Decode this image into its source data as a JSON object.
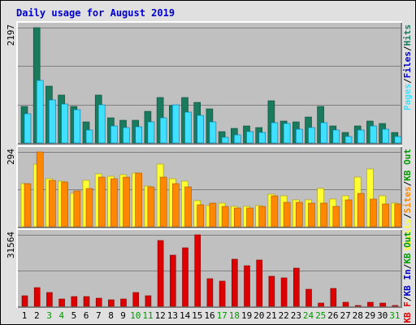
{
  "colors": {
    "pages_dark": "#1a7a5e",
    "pages_light": "#2ab98a",
    "files_dark": "#0aa0c8",
    "files_light": "#40e0ff",
    "visits": "#ffff33",
    "sites": "#ff8800",
    "kb": "#dd0000",
    "weekday": "#000000",
    "weekend": "#009900",
    "panel_bg": "#c0c0c0",
    "grid": "#808080"
  },
  "chart_data": {
    "title": "Daily usage for August 2019",
    "type": "bar",
    "days": [
      "1",
      "2",
      "3",
      "4",
      "5",
      "6",
      "7",
      "8",
      "9",
      "10",
      "11",
      "12",
      "13",
      "14",
      "15",
      "16",
      "17",
      "18",
      "19",
      "20",
      "21",
      "22",
      "23",
      "24",
      "25",
      "26",
      "27",
      "28",
      "29",
      "30",
      "31"
    ],
    "weekend_days": [
      "3",
      "4",
      "10",
      "11",
      "17",
      "18",
      "24",
      "25",
      "31"
    ],
    "panels": [
      {
        "ymax_label": "2197",
        "ymax": 2197,
        "legend": [
          {
            "text": "Pages",
            "color": "#40e0ff"
          },
          {
            "text": "Files",
            "color": "#0000cc"
          },
          {
            "text": "Hits",
            "color": "#1a7a5e"
          }
        ],
        "series": [
          {
            "name": "Hits",
            "values": [
              690,
              2197,
              1080,
              910,
              690,
              410,
              910,
              480,
              430,
              430,
              600,
              860,
              710,
              860,
              780,
              650,
              210,
              280,
              320,
              290,
              800,
              420,
              410,
              500,
              700,
              330,
              200,
              330,
              420,
              370,
              200
            ]
          },
          {
            "name": "Files",
            "values": [
              560,
              1190,
              820,
              750,
              640,
              250,
              720,
              330,
              290,
              310,
              400,
              480,
              730,
              590,
              520,
              410,
              110,
              160,
              210,
              200,
              380,
              370,
              270,
              300,
              380,
              250,
              130,
              250,
              320,
              260,
              130
            ]
          }
        ]
      },
      {
        "ymax_label": "294",
        "ymax": 294,
        "legend": [
          {
            "text": "Visits",
            "color": "#ffff33"
          },
          {
            "text": "Sites",
            "color": "#ff8800"
          },
          {
            "text": "KB Out",
            "color": "#009900"
          }
        ],
        "series": [
          {
            "name": "Visits",
            "values": [
              170,
              246,
              188,
              180,
              132,
              182,
              208,
              198,
              206,
              212,
              160,
              246,
              190,
              180,
              102,
              84,
              92,
              80,
              80,
              82,
              128,
              122,
              104,
              105,
              150,
              110,
              120,
              195,
              226,
              120,
              94
            ]
          },
          {
            "name": "Sites",
            "values": [
              170,
              294,
              182,
              177,
              140,
              150,
              195,
              190,
              195,
              212,
              156,
              196,
              170,
              155,
              85,
              92,
              80,
              75,
              75,
              80,
              120,
              95,
              95,
              92,
              92,
              80,
              105,
              130,
              108,
              88,
              90
            ]
          }
        ]
      },
      {
        "ymax_label": "31564",
        "ymax": 31564,
        "legend": [
          {
            "text": "KB F",
            "color": "#dd0000"
          },
          {
            "text": "KB In",
            "color": "#0000cc"
          },
          {
            "text": "KB Out",
            "color": "#009900"
          }
        ],
        "series": [
          {
            "name": "KB F",
            "values": [
              4700,
              8200,
              6200,
              3300,
              4200,
              4200,
              3700,
              2900,
              3400,
              6200,
              4600,
              29000,
              22700,
              25700,
              31564,
              12200,
              11100,
              20900,
              17800,
              20400,
              13200,
              12700,
              16700,
              7400,
              1600,
              7900,
              1700,
              300,
              1900,
              1600,
              300
            ]
          }
        ]
      }
    ]
  }
}
